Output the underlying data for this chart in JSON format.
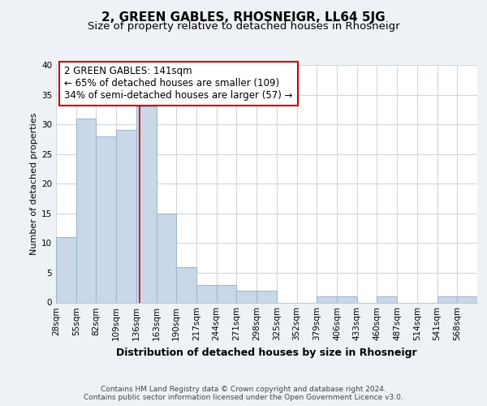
{
  "title": "2, GREEN GABLES, RHOSNEIGR, LL64 5JG",
  "subtitle": "Size of property relative to detached houses in Rhosneigr",
  "xlabel": "Distribution of detached houses by size in Rhosneigr",
  "ylabel": "Number of detached properties",
  "bin_labels": [
    "28sqm",
    "55sqm",
    "82sqm",
    "109sqm",
    "136sqm",
    "163sqm",
    "190sqm",
    "217sqm",
    "244sqm",
    "271sqm",
    "298sqm",
    "325sqm",
    "352sqm",
    "379sqm",
    "406sqm",
    "433sqm",
    "460sqm",
    "487sqm",
    "514sqm",
    "541sqm",
    "568sqm"
  ],
  "bin_edges": [
    28,
    55,
    82,
    109,
    136,
    163,
    190,
    217,
    244,
    271,
    298,
    325,
    352,
    379,
    406,
    433,
    460,
    487,
    514,
    541,
    568,
    595
  ],
  "bar_heights": [
    11,
    31,
    28,
    29,
    33,
    15,
    6,
    3,
    3,
    2,
    2,
    0,
    0,
    1,
    1,
    0,
    1,
    0,
    0,
    1,
    1
  ],
  "bar_color": "#c8d8e8",
  "bar_edge_color": "#a0b8cc",
  "highlight_bin_index": 4,
  "red_line_x": 141,
  "red_line_color": "#cc0000",
  "annotation_text": "2 GREEN GABLES: 141sqm\n← 65% of detached houses are smaller (109)\n34% of semi-detached houses are larger (57) →",
  "annotation_box_color": "#ffffff",
  "annotation_box_edge_color": "#cc0000",
  "ylim": [
    0,
    40
  ],
  "yticks": [
    0,
    5,
    10,
    15,
    20,
    25,
    30,
    35,
    40
  ],
  "footer_text": "Contains HM Land Registry data © Crown copyright and database right 2024.\nContains public sector information licensed under the Open Government Licence v3.0.",
  "background_color": "#eef2f6",
  "plot_bg_color": "#ffffff",
  "grid_color": "#d0d8e0",
  "title_fontsize": 11,
  "subtitle_fontsize": 9.5,
  "xlabel_fontsize": 9,
  "ylabel_fontsize": 8,
  "tick_fontsize": 7.5,
  "annotation_fontsize": 8.5,
  "footer_fontsize": 6.5
}
